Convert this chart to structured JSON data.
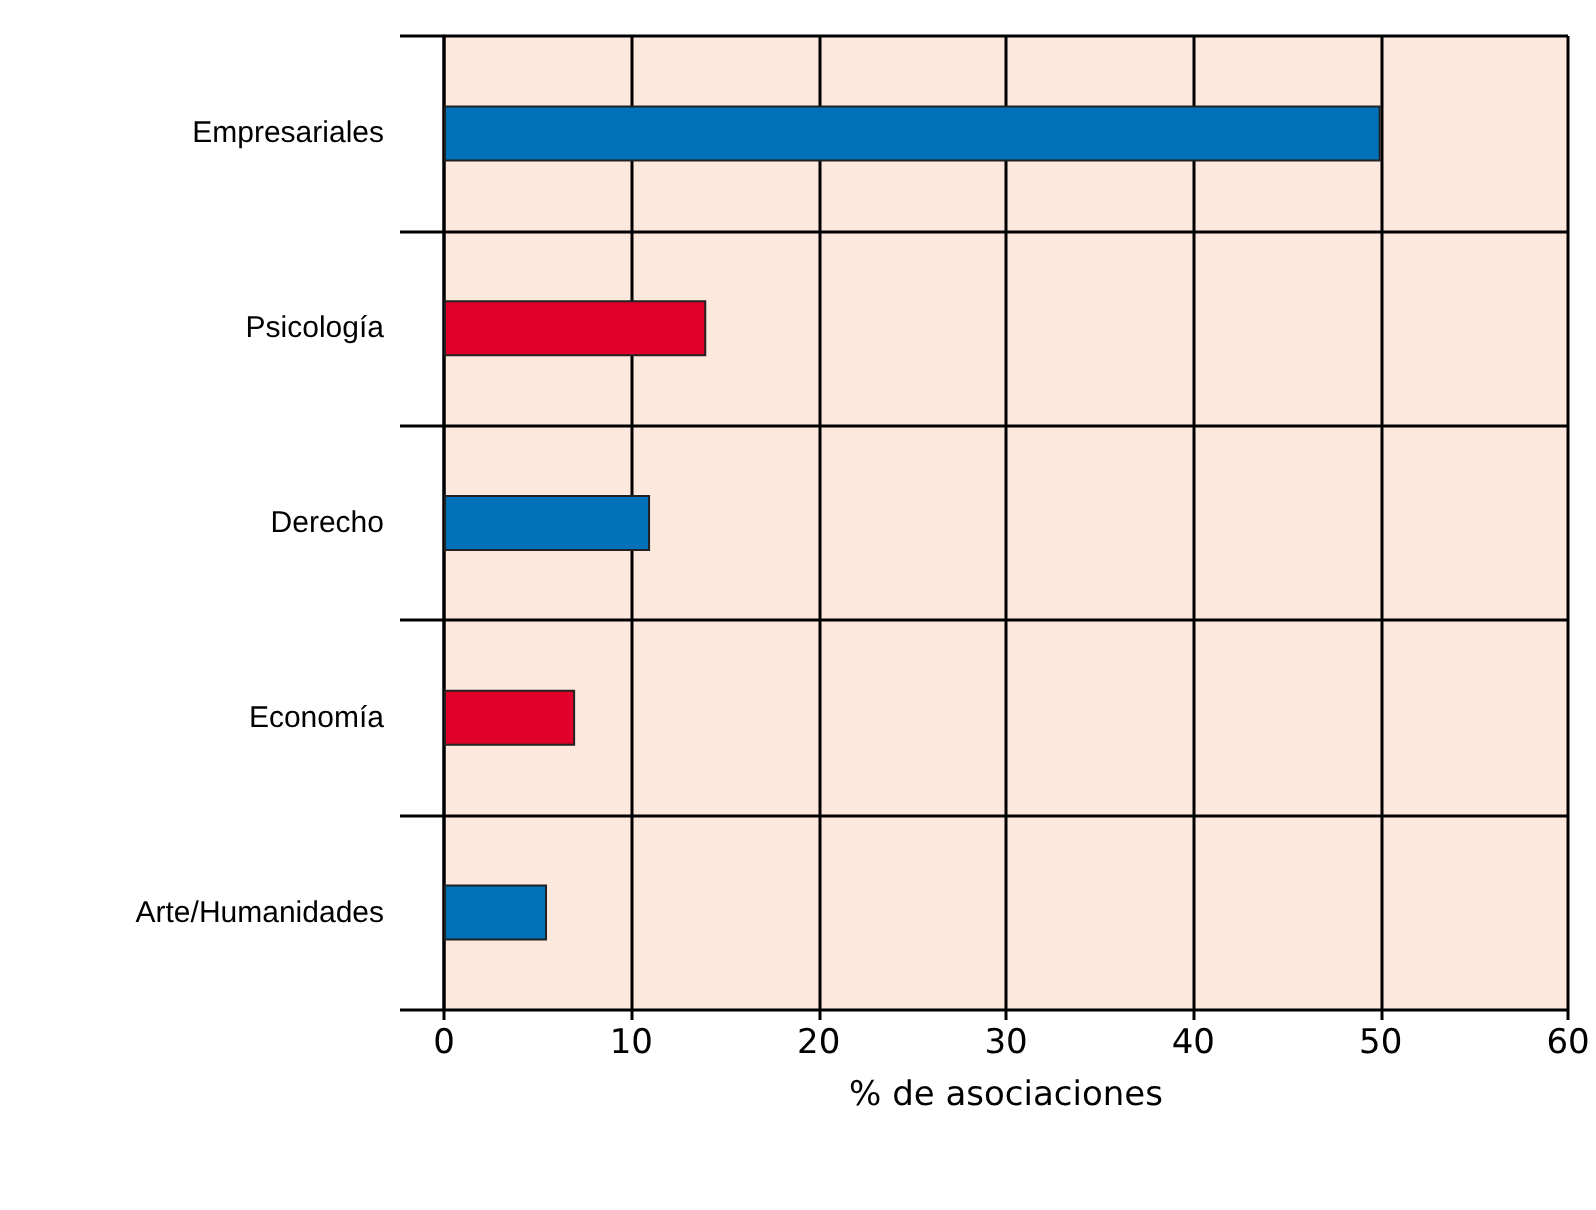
{
  "chart_data": {
    "type": "bar",
    "orientation": "horizontal",
    "xlabel": "% de asociaciones",
    "categories": [
      "Empresariales",
      "Psicología",
      "Derecho",
      "Economía",
      "Arte/Humanidades"
    ],
    "values": [
      50,
      14,
      11,
      7,
      5.5
    ],
    "colors": [
      "#0070b8",
      "#e0002a",
      "#0070b8",
      "#e0002a",
      "#0070b8"
    ],
    "xlim": [
      0,
      60
    ],
    "xticks": [
      0,
      10,
      20,
      30,
      40,
      50,
      60
    ],
    "grid": true
  }
}
